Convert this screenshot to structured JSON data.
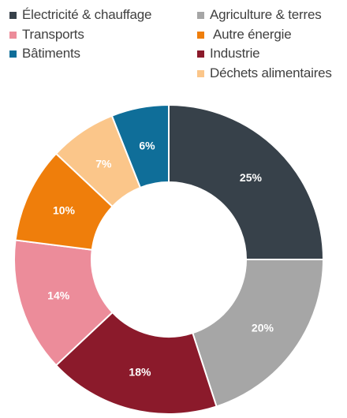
{
  "chart_data": {
    "type": "pie",
    "variant": "donut",
    "title": "",
    "legend_position": "top",
    "slices": [
      {
        "name": "Électricité & chauffage",
        "value": 25,
        "label": "25%",
        "color": "#37414a",
        "label_color": "#ffffff"
      },
      {
        "name": "Agriculture & terres",
        "value": 20,
        "label": "20%",
        "color": "#a6a6a6",
        "label_color": "#ffffff"
      },
      {
        "name": "Industrie",
        "value": 18,
        "label": "18%",
        "color": "#8b1a2b",
        "label_color": "#ffffff"
      },
      {
        "name": "Transports",
        "value": 14,
        "label": "14%",
        "color": "#ec8c9a",
        "label_color": "#ffffff"
      },
      {
        "name": "Autre énergie",
        "value": 10,
        "label": "10%",
        "color": "#ef7e0b",
        "label_color": "#ffffff"
      },
      {
        "name": "Déchets alimentaires",
        "value": 7,
        "label": "7%",
        "color": "#fbc68a",
        "label_color": "#ffffff"
      },
      {
        "name": "Bâtiments",
        "value": 6,
        "label": "6%",
        "color": "#0f6e99",
        "label_color": "#ffffff"
      }
    ]
  }
}
